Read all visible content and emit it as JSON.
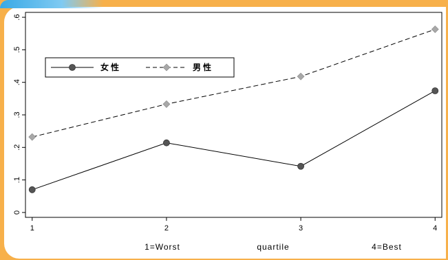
{
  "chart_data": {
    "type": "line",
    "x": [
      1,
      2,
      3,
      4
    ],
    "xticks": [
      "1",
      "2",
      "3",
      "4"
    ],
    "yticks": [
      "0",
      ".1",
      ".2",
      ".3",
      ".4",
      ".5",
      ".6"
    ],
    "ytick_values": [
      0,
      0.1,
      0.2,
      0.3,
      0.4,
      0.5,
      0.6
    ],
    "ylim": [
      -0.015,
      0.615
    ],
    "xlim": [
      0.95,
      4.05
    ],
    "grid": false,
    "legend_position": "top-left",
    "x_annotations": [
      "1=Worst",
      "quartile",
      "4=Best"
    ],
    "series": [
      {
        "name": "女性",
        "values": [
          0.07,
          0.214,
          0.142,
          0.374
        ],
        "color": "#000000",
        "marker_color": "#555555",
        "marker": "circle",
        "dash": "solid"
      },
      {
        "name": "男性",
        "values": [
          0.232,
          0.333,
          0.418,
          0.563
        ],
        "color": "#000000",
        "marker_color": "#a8a8a8",
        "marker": "diamond",
        "dash": "dashed"
      }
    ]
  }
}
